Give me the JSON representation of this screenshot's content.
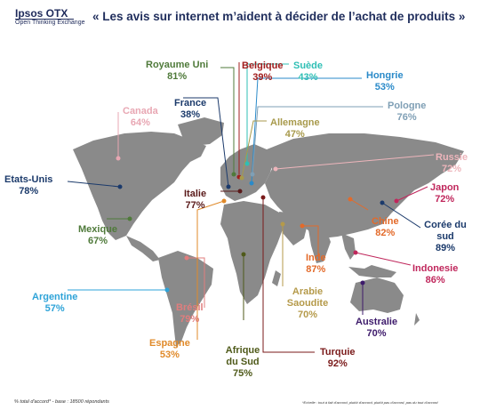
{
  "header": {
    "logo_name": "Ipsos OTX",
    "logo_tagline": "Open Thinking Exchange",
    "title": "« Les avis sur internet m’aident à décider de l’achat de produits »"
  },
  "countries": [
    {
      "id": "royaume-uni",
      "name": "Royaume Uni",
      "value": "81%",
      "color": "#4f7a3a"
    },
    {
      "id": "belgique",
      "name": "Belgique",
      "value": "39%",
      "color": "#a01c1c"
    },
    {
      "id": "suede",
      "name": "Suède",
      "value": "43%",
      "color": "#2fbfb5"
    },
    {
      "id": "hongrie",
      "name": "Hongrie",
      "value": "53%",
      "color": "#2a8ac9"
    },
    {
      "id": "pologne",
      "name": "Pologne",
      "value": "76%",
      "color": "#7f9fb5"
    },
    {
      "id": "canada",
      "name": "Canada",
      "value": "64%",
      "color": "#e8a7b3"
    },
    {
      "id": "france",
      "name": "France",
      "value": "38%",
      "color": "#1b3a6b"
    },
    {
      "id": "allemagne",
      "name": "Allemagne",
      "value": "47%",
      "color": "#a89a4c"
    },
    {
      "id": "russie",
      "name": "Russie",
      "value": "72%",
      "color": "#edb5bb"
    },
    {
      "id": "etats-unis",
      "name": "Etats-Unis",
      "value": "78%",
      "color": "#1b3a6b"
    },
    {
      "id": "italie",
      "name": "Italie",
      "value": "77%",
      "color": "#5a1a1a"
    },
    {
      "id": "japon",
      "name": "Japon",
      "value": "72%",
      "color": "#c0275c"
    },
    {
      "id": "mexique",
      "name": "Mexique",
      "value": "67%",
      "color": "#4f7a3a"
    },
    {
      "id": "chine",
      "name": "Chine",
      "value": "82%",
      "color": "#e36a2a"
    },
    {
      "id": "coree",
      "name": "Corée du sud",
      "value": "89%",
      "color": "#1b3a6b"
    },
    {
      "id": "inde",
      "name": "Inde",
      "value": "87%",
      "color": "#e36a2a"
    },
    {
      "id": "indonesie",
      "name": "Indonesie",
      "value": "86%",
      "color": "#c0275c"
    },
    {
      "id": "argentine",
      "name": "Argentine",
      "value": "57%",
      "color": "#2ea3d8"
    },
    {
      "id": "bresil",
      "name": "Brésil",
      "value": "79%",
      "color": "#e07d7d"
    },
    {
      "id": "arabie",
      "name": "Arabie Saoudite",
      "value": "70%",
      "color": "#b59a4a"
    },
    {
      "id": "australie",
      "name": "Australie",
      "value": "70%",
      "color": "#3d1a6b"
    },
    {
      "id": "espagne",
      "name": "Espagne",
      "value": "53%",
      "color": "#e08a2a"
    },
    {
      "id": "afrique-du-sud",
      "name": "Afrique du Sud",
      "value": "75%",
      "color": "#4f5a1a"
    },
    {
      "id": "turquie",
      "name": "Turquie",
      "value": "92%",
      "color": "#7a1a1a"
    }
  ],
  "footer": {
    "left": "% total d'accord* - base : 18500 répondants",
    "right": "*Echelle : tout à fait d'accord, plutôt d'accord, plutôt pas d'accord, pas du tout d'accord"
  }
}
